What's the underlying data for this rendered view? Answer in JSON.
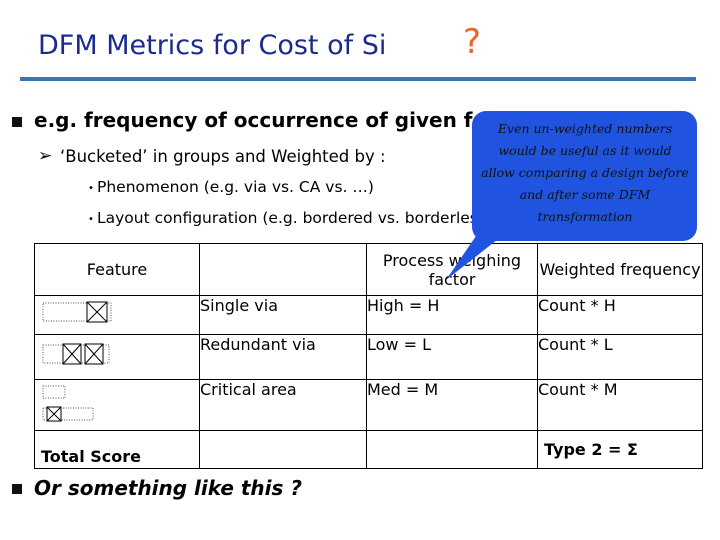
{
  "slide": {
    "title": "DFM Metrics for Cost of Si",
    "title_mark": "?",
    "bullet1": "e.g. frequency of occurrence of given feature(s)",
    "sub_bullet": "‘Bucketed’ in groups and Weighted by :",
    "dots": [
      "Phenomenon (e.g. via vs. CA vs. …)",
      "Layout configuration (e.g. bordered vs. borderless)"
    ],
    "bullet2": "Or something like this ?",
    "callout": "Even un-weighted numbers would be useful as it would allow comparing a design before and after some DFM transformation"
  },
  "table": {
    "headers": [
      "Feature",
      "",
      "Process weighing factor",
      "Weighted frequency"
    ],
    "rows": [
      {
        "name": "Single via",
        "factor": "High = H",
        "freq": "Count * H"
      },
      {
        "name": "Redundant via",
        "factor": "Low = L",
        "freq": "Count * L"
      },
      {
        "name": "Critical area",
        "factor": "Med = M",
        "freq": "Count * M"
      }
    ],
    "total_label": "Total Score",
    "total_value": "Type 2 = Σ"
  },
  "colors": {
    "title": "#1b2a8c",
    "accent": "#e8662a",
    "rule": "#3d74b8",
    "callout": "#1f53e0"
  }
}
